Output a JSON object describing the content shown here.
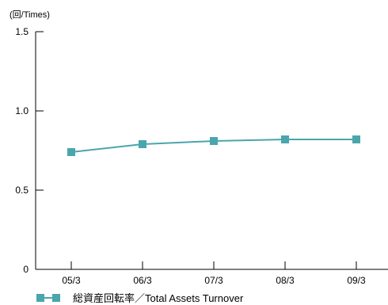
{
  "chart_data": {
    "type": "line",
    "y_unit_label": "(回/Times)",
    "categories": [
      "05/3",
      "06/3",
      "07/3",
      "08/3",
      "09/3"
    ],
    "series": [
      {
        "name": "総資産回転率／Total Assets Turnover",
        "values": [
          0.74,
          0.79,
          0.81,
          0.82,
          0.82
        ],
        "color": "#4aa5ad"
      }
    ],
    "ylim": [
      0,
      1.5
    ],
    "y_ticks": [
      "0",
      "0.5",
      "1.0",
      "1.5"
    ],
    "grid": false,
    "legend_position": "bottom-left"
  }
}
